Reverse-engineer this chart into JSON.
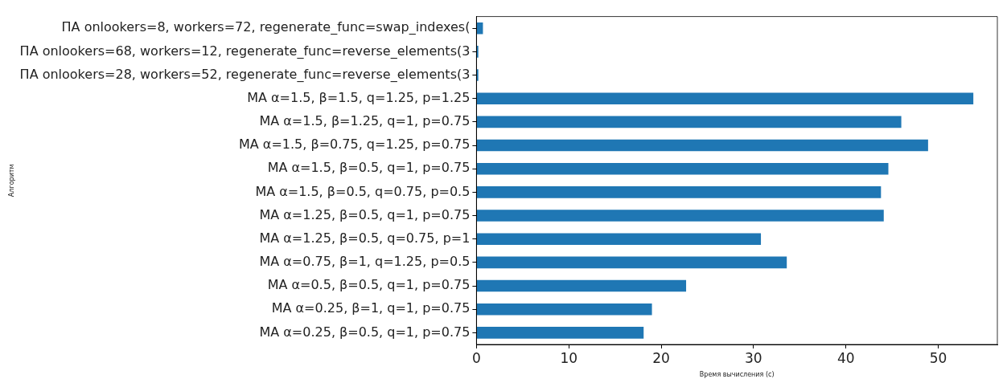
{
  "chart_data": {
    "type": "bar",
    "orientation": "horizontal",
    "xlabel": "Время вычисления (с)",
    "ylabel": "Алгоритм",
    "categories": [
      "ПА onlookers=8, workers=72, regenerate_func=swap_indexes(",
      "ПА onlookers=68, workers=12, regenerate_func=reverse_elements(3",
      "ПА onlookers=28, workers=52, regenerate_func=reverse_elements(3",
      "MA α=1.5, β=1.5, q=1.25, p=1.25",
      "MA α=1.5, β=1.25, q=1, p=0.75",
      "MA α=1.5, β=0.75, q=1.25, p=0.75",
      "MA α=1.5, β=0.5, q=1, p=0.75",
      "MA α=1.5, β=0.5, q=0.75, p=0.5",
      "MA α=1.25, β=0.5, q=1, p=0.75",
      "MA α=1.25, β=0.5, q=0.75, p=1",
      "MA α=0.75, β=1, q=1.25, p=0.5",
      "MA α=0.5, β=0.5, q=1, p=0.75",
      "MA α=0.25, β=1, q=1, p=0.75",
      "MA α=0.25, β=0.5, q=1, p=0.75"
    ],
    "values": [
      0.7,
      0.2,
      0.2,
      53.8,
      46.0,
      48.9,
      44.6,
      43.8,
      44.1,
      30.8,
      33.6,
      22.7,
      19.0,
      18.1
    ],
    "color": "#1f77b4",
    "xlim": [
      0,
      56.4
    ],
    "xticks": [
      0,
      10,
      20,
      30,
      40,
      50
    ],
    "grid": false,
    "legend": false
  }
}
